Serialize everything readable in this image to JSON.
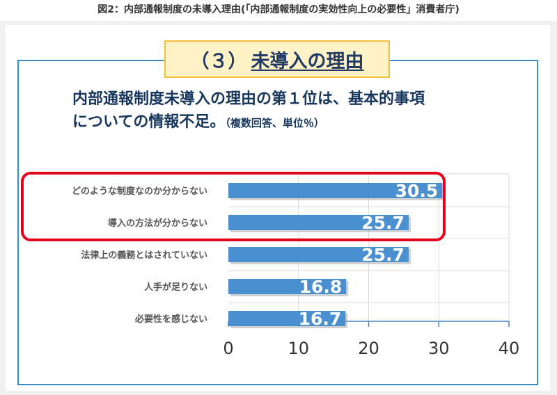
{
  "caption": "図2：内部通報制度の未導入理由(「内部通報制度の実効性向上の必要性」消費者庁)",
  "section": {
    "number": "（３）",
    "title": "未導入の理由"
  },
  "headline": {
    "line1": "内部通報制度未導入の理由の第１位は、基本的事項",
    "line2": "についての情報不足。",
    "note": "（複数回答、単位％）"
  },
  "chart_data": {
    "type": "bar",
    "orientation": "horizontal",
    "categories": [
      "どのような制度なのか分からない",
      "導入の方法が分からない",
      "法律上の義務とはされていない",
      "人手が足りない",
      "必要性を感じない"
    ],
    "values": [
      30.5,
      25.7,
      25.7,
      16.8,
      16.7
    ],
    "value_labels": [
      "30.5",
      "25.7",
      "25.7",
      "16.8",
      "16.7"
    ],
    "xlim": [
      0,
      40
    ],
    "xticks": [
      "0",
      "10",
      "20",
      "30",
      "40"
    ],
    "grid": true,
    "highlighted_categories": [
      0,
      1
    ],
    "colors": {
      "bar": "#4a90d0",
      "highlight": "#e8001c",
      "grid": "#d9d9d9",
      "axis": "#4f81bd",
      "label": "#555555"
    }
  }
}
